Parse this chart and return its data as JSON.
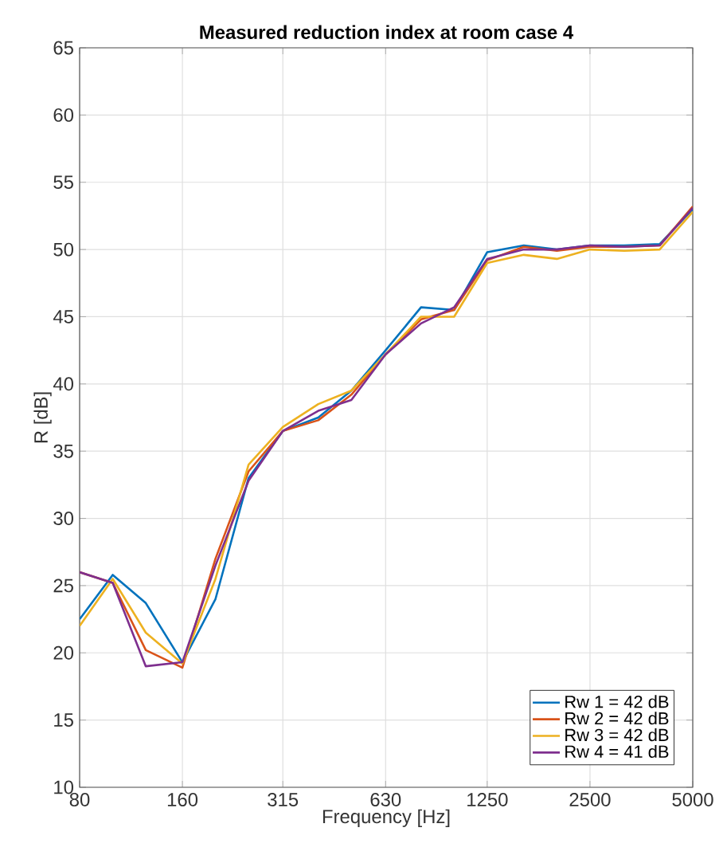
{
  "chart_data": {
    "type": "line",
    "title": "Measured reduction index at room case 4",
    "xlabel": "Frequency  [Hz]",
    "ylabel": "R  [dB]",
    "x": [
      80,
      100,
      125,
      160,
      200,
      250,
      315,
      400,
      500,
      630,
      800,
      1000,
      1250,
      1600,
      2000,
      2500,
      3150,
      4000,
      5000
    ],
    "series": [
      {
        "name": "Rw 1 = 42 dB",
        "color": "#0072bd",
        "values": [
          22.5,
          25.8,
          23.7,
          19.3,
          24,
          33,
          36.5,
          37.5,
          39.5,
          42.5,
          45.7,
          45.5,
          49.8,
          50.3,
          50,
          50.3,
          50.3,
          50.4,
          53
        ]
      },
      {
        "name": "Rw 2 = 42 dB",
        "color": "#d95319",
        "values": [
          26,
          25.2,
          20.2,
          18.9,
          27,
          33.5,
          36.5,
          37.3,
          39.2,
          42.2,
          44.8,
          45.5,
          49.2,
          50.2,
          49.9,
          50.2,
          50.2,
          50.3,
          53.2
        ]
      },
      {
        "name": "Rw 3 = 42 dB",
        "color": "#edb120",
        "values": [
          22,
          25.5,
          21.5,
          19.2,
          25.5,
          34,
          36.8,
          38.5,
          39.5,
          42.2,
          45,
          45,
          49,
          49.6,
          49.3,
          50,
          49.9,
          50,
          52.8
        ]
      },
      {
        "name": "Rw 4 = 41 dB",
        "color": "#7e2f8e",
        "values": [
          26,
          25.2,
          19,
          19.3,
          26.5,
          32.8,
          36.5,
          38,
          38.8,
          42.2,
          44.5,
          45.7,
          49.3,
          50,
          50,
          50.3,
          50.2,
          50.3,
          53.1
        ]
      }
    ],
    "xlim": [
      80,
      5000
    ],
    "xticks": [
      80,
      160,
      315,
      630,
      1250,
      2500,
      5000
    ],
    "ylim": [
      10,
      65
    ],
    "yticks": [
      10,
      15,
      20,
      25,
      30,
      35,
      40,
      45,
      50,
      55,
      60,
      65
    ],
    "log": "x",
    "grid": true,
    "legend": "bottom right",
    "line_style": "solid",
    "marker": "none"
  }
}
